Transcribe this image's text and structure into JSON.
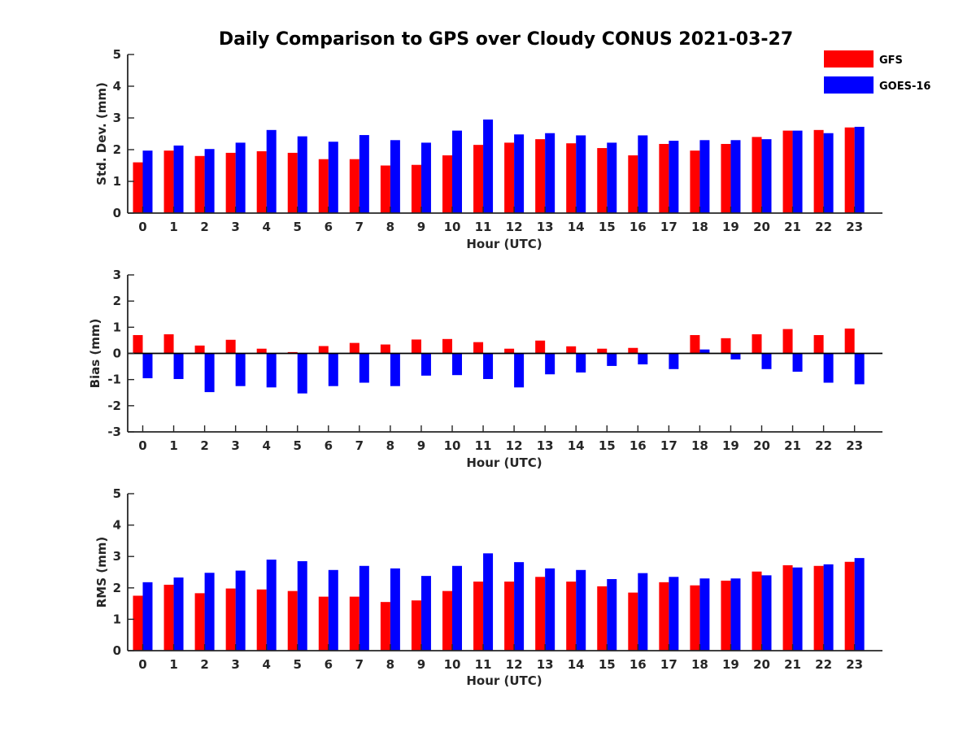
{
  "chart_data": {
    "title": "Daily Comparison to GPS over Cloudy CONUS 2021-03-27",
    "legend": {
      "placement": "top-right",
      "entries": [
        {
          "name": "GFS",
          "color": "#ff0000"
        },
        {
          "name": "GOES-16",
          "color": "#0000ff"
        }
      ]
    },
    "panels": [
      {
        "type": "bar",
        "xlabel": "Hour (UTC)",
        "ylabel": "Std. Dev. (mm)",
        "ylim": [
          0,
          5
        ],
        "yticks": [
          0,
          1,
          2,
          3,
          4,
          5
        ],
        "categories": [
          "0",
          "1",
          "2",
          "3",
          "4",
          "5",
          "6",
          "7",
          "8",
          "9",
          "10",
          "11",
          "12",
          "13",
          "14",
          "15",
          "16",
          "17",
          "18",
          "19",
          "20",
          "21",
          "22",
          "23"
        ],
        "series": [
          {
            "name": "GFS",
            "color": "#ff0000",
            "values": [
              1.6,
              1.97,
              1.8,
              1.9,
              1.95,
              1.9,
              1.7,
              1.7,
              1.5,
              1.52,
              1.82,
              2.15,
              2.22,
              2.33,
              2.2,
              2.05,
              1.82,
              2.18,
              1.97,
              2.18,
              2.4,
              2.6,
              2.62,
              2.7
            ]
          },
          {
            "name": "GOES-16",
            "color": "#0000ff",
            "values": [
              1.97,
              2.13,
              2.02,
              2.22,
              2.62,
              2.42,
              2.25,
              2.46,
              2.3,
              2.22,
              2.6,
              2.95,
              2.48,
              2.52,
              2.45,
              2.22,
              2.45,
              2.28,
              2.3,
              2.3,
              2.33,
              2.6,
              2.52,
              2.72
            ]
          }
        ]
      },
      {
        "type": "bar",
        "xlabel": "Hour (UTC)",
        "ylabel": "Bias (mm)",
        "ylim": [
          -3,
          3
        ],
        "yticks": [
          -3,
          -2,
          -1,
          0,
          1,
          2,
          3
        ],
        "categories": [
          "0",
          "1",
          "2",
          "3",
          "4",
          "5",
          "6",
          "7",
          "8",
          "9",
          "10",
          "11",
          "12",
          "13",
          "14",
          "15",
          "16",
          "17",
          "18",
          "19",
          "20",
          "21",
          "22",
          "23"
        ],
        "series": [
          {
            "name": "GFS",
            "color": "#ff0000",
            "values": [
              0.7,
              0.73,
              0.3,
              0.52,
              0.18,
              0.05,
              0.28,
              0.4,
              0.34,
              0.53,
              0.55,
              0.43,
              0.18,
              0.49,
              0.27,
              0.18,
              0.21,
              0.0,
              0.7,
              0.58,
              0.73,
              0.93,
              0.7,
              0.95
            ]
          },
          {
            "name": "GOES-16",
            "color": "#0000ff",
            "values": [
              -0.95,
              -0.98,
              -1.48,
              -1.25,
              -1.3,
              -1.53,
              -1.25,
              -1.12,
              -1.25,
              -0.85,
              -0.83,
              -0.98,
              -1.3,
              -0.8,
              -0.73,
              -0.48,
              -0.42,
              -0.6,
              0.15,
              -0.23,
              -0.6,
              -0.7,
              -1.12,
              -1.18
            ]
          }
        ]
      },
      {
        "type": "bar",
        "xlabel": "Hour (UTC)",
        "ylabel": "RMS (mm)",
        "ylim": [
          0,
          5
        ],
        "yticks": [
          0,
          1,
          2,
          3,
          4,
          5
        ],
        "categories": [
          "0",
          "1",
          "2",
          "3",
          "4",
          "5",
          "6",
          "7",
          "8",
          "9",
          "10",
          "11",
          "12",
          "13",
          "14",
          "15",
          "16",
          "17",
          "18",
          "19",
          "20",
          "21",
          "22",
          "23"
        ],
        "series": [
          {
            "name": "GFS",
            "color": "#ff0000",
            "values": [
              1.75,
              2.1,
              1.83,
              1.98,
              1.95,
              1.9,
              1.72,
              1.72,
              1.55,
              1.6,
              1.9,
              2.2,
              2.2,
              2.35,
              2.2,
              2.05,
              1.85,
              2.18,
              2.08,
              2.23,
              2.52,
              2.72,
              2.7,
              2.83
            ]
          },
          {
            "name": "GOES-16",
            "color": "#0000ff",
            "values": [
              2.18,
              2.33,
              2.48,
              2.55,
              2.9,
              2.85,
              2.57,
              2.7,
              2.62,
              2.38,
              2.7,
              3.1,
              2.82,
              2.62,
              2.57,
              2.28,
              2.47,
              2.35,
              2.3,
              2.3,
              2.4,
              2.65,
              2.75,
              2.95
            ]
          }
        ]
      }
    ]
  }
}
